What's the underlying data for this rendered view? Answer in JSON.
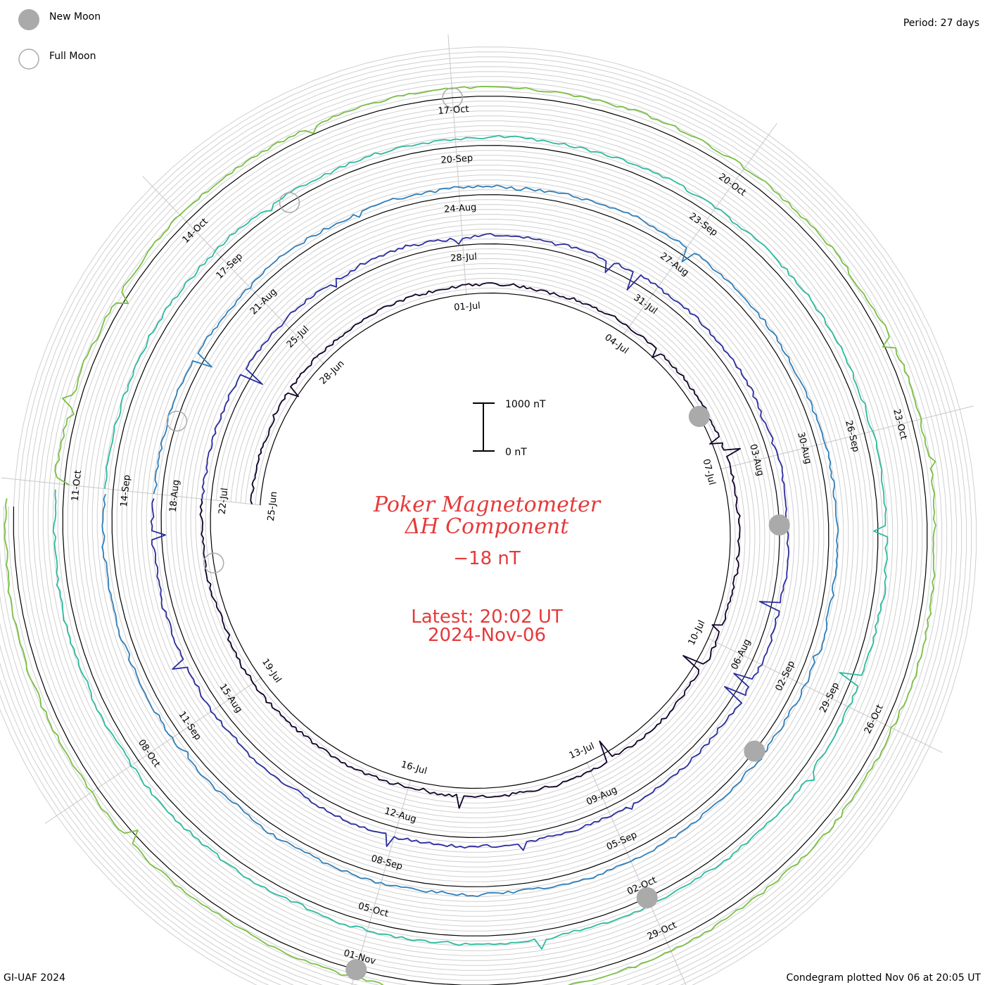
{
  "header": {
    "legend_new_moon": "New Moon",
    "legend_full_moon": "Full Moon",
    "period": "Period: 27 days"
  },
  "title": {
    "line1": "Poker Magnetometer",
    "line2": "ΔH Component",
    "value": "−18 nT"
  },
  "latest": {
    "time": "Latest: 20:02 UT",
    "date": "2024-Nov-06"
  },
  "scale_bar": {
    "top_label": "1000 nT",
    "bottom_label": "0 nT"
  },
  "footer": {
    "left": "GI-UAF 2024",
    "right": "Condegram plotted Nov 06 at 20:05 UT"
  },
  "chart_data": {
    "type": "line",
    "title": "Poker Magnetometer ΔH Component",
    "period_days": 27,
    "current_value_nT": -18,
    "scale_nT": [
      0,
      1000
    ],
    "date_labels": [
      "25-Jun",
      "28-Jun",
      "01-Jul",
      "04-Jul",
      "07-Jul",
      "10-Jul",
      "13-Jul",
      "16-Jul",
      "19-Jul",
      "22-Jul",
      "25-Jul",
      "28-Jul",
      "31-Jul",
      "03-Aug",
      "06-Aug",
      "09-Aug",
      "12-Aug",
      "15-Aug",
      "18-Aug",
      "21-Aug",
      "24-Aug",
      "27-Aug",
      "30-Aug",
      "02-Sep",
      "05-Sep",
      "08-Sep",
      "11-Sep",
      "14-Sep",
      "17-Sep",
      "20-Sep",
      "23-Sep",
      "26-Sep",
      "29-Sep",
      "02-Oct",
      "05-Oct",
      "08-Oct",
      "11-Oct",
      "14-Oct",
      "17-Oct",
      "20-Oct",
      "23-Oct",
      "26-Oct",
      "29-Oct",
      "01-Nov"
    ],
    "series_colors": [
      "#10002a",
      "#2a2d9e",
      "#2f7fba",
      "#2bbba0",
      "#7ac043",
      "#a8a028",
      "#c67a12",
      "#b31010"
    ],
    "new_moons": [
      "06-Jul",
      "04-Aug",
      "03-Sep",
      "02-Oct",
      "01-Nov"
    ],
    "full_moons": [
      "21-Jul",
      "19-Aug",
      "18-Sep",
      "17-Oct"
    ]
  }
}
